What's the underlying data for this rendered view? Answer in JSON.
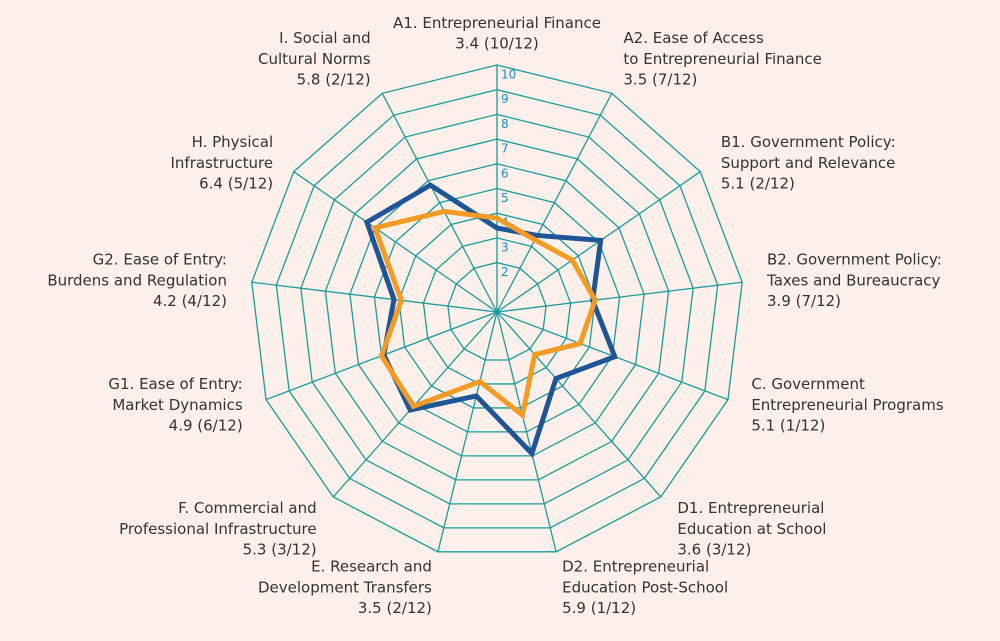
{
  "chart_data": {
    "type": "radar",
    "categories": [
      "A1. Entrepreneurial Finance",
      "A2. Ease of Access\nto Entrepreneurial Finance",
      "B1. Government Policy:\nSupport and Relevance",
      "B2. Government Policy:\nTaxes and Bureaucracy",
      "C. Government\nEntrepreneurial Programs",
      "D1. Entrepreneurial\nEducation at School",
      "D2. Entrepreneurial\nEducation Post-School",
      "E. Research and\nDevelopment Transfers",
      "F. Commercial and\nProfessional Infrastructure",
      "G1. Ease of Entry:\nMarket Dynamics",
      "G2. Ease of Entry:\nBurdens and Regulation",
      "H. Physical\nInfrastructure",
      "I. Social and\nCultural Norms"
    ],
    "series": [
      {
        "color": "#1f5596",
        "values": [
          3.4,
          3.5,
          5.1,
          3.9,
          5.1,
          3.6,
          5.9,
          3.5,
          5.3,
          4.9,
          4.2,
          6.4,
          5.8
        ],
        "value_labels": [
          "3.4 (10/12)",
          "3.5 (7/12)",
          "5.1 (2/12)",
          "3.9 (7/12)",
          "5.1 (1/12)",
          "3.6 (3/12)",
          "5.9 (1/12)",
          "3.5 (2/12)",
          "5.3 (3/12)",
          "4.9 (6/12)",
          "4.2 (4/12)",
          "6.4 (5/12)",
          "5.8 (2/12)"
        ]
      },
      {
        "color": "#f59a23",
        "values": [
          3.8,
          3.3,
          3.7,
          4.0,
          3.6,
          2.3,
          4.3,
          2.9,
          5.1,
          5.0,
          3.9,
          6.0,
          4.6
        ]
      }
    ],
    "ylim": [
      0,
      10
    ],
    "yticks": [
      2,
      3,
      4,
      5,
      6,
      7,
      8,
      9,
      10
    ],
    "grid_color": "#1a9b9b"
  }
}
